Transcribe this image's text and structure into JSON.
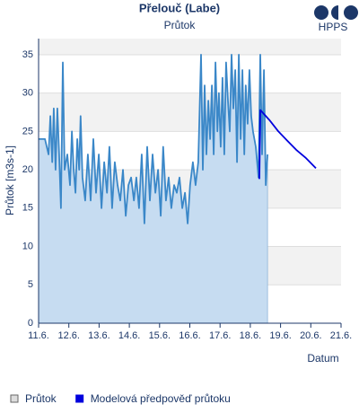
{
  "logo": "HPPS",
  "chart_data": {
    "type": "line",
    "title": "Přelouč (Labe)",
    "subtitle": "Průtok",
    "y_label": "Průtok [m3s-1]",
    "x_label": "Datum",
    "xlim": [
      11,
      21
    ],
    "ylim": [
      0,
      37.1
    ],
    "xticks": [
      {
        "value": 11,
        "label": "11.6."
      },
      {
        "value": 12,
        "label": "12.6."
      },
      {
        "value": 13,
        "label": "13.6."
      },
      {
        "value": 14,
        "label": "14.6."
      },
      {
        "value": 15,
        "label": "15.6."
      },
      {
        "value": 16,
        "label": "16.6."
      },
      {
        "value": 17,
        "label": "17.6."
      },
      {
        "value": 18,
        "label": "18.6."
      },
      {
        "value": 19,
        "label": "19.6."
      },
      {
        "value": 20,
        "label": "20.6."
      },
      {
        "value": 21,
        "label": "21.6."
      }
    ],
    "yticks": [
      0,
      5,
      10,
      15,
      20,
      25,
      30,
      35
    ],
    "grid": true,
    "series": [
      {
        "name": "Průtok",
        "color": "#3a87c8",
        "area_color": "#c6dcf1",
        "x": [
          11.0,
          11.21,
          11.33,
          11.39,
          11.45,
          11.5,
          11.56,
          11.62,
          11.68,
          11.74,
          11.8,
          11.86,
          11.95,
          12.04,
          12.1,
          12.16,
          12.22,
          12.28,
          12.34,
          12.39,
          12.45,
          12.54,
          12.63,
          12.72,
          12.81,
          12.9,
          12.99,
          13.08,
          13.17,
          13.26,
          13.34,
          13.43,
          13.52,
          13.61,
          13.7,
          13.79,
          13.88,
          13.97,
          14.06,
          14.15,
          14.23,
          14.32,
          14.41,
          14.5,
          14.59,
          14.68,
          14.77,
          14.86,
          14.95,
          15.04,
          15.12,
          15.21,
          15.3,
          15.39,
          15.48,
          15.57,
          15.66,
          15.75,
          15.84,
          15.93,
          16.01,
          16.1,
          16.19,
          16.28,
          16.37,
          16.43,
          16.49,
          16.55,
          16.61,
          16.67,
          16.73,
          16.79,
          16.85,
          16.91,
          16.96,
          17.02,
          17.08,
          17.14,
          17.2,
          17.26,
          17.32,
          17.38,
          17.44,
          17.5,
          17.56,
          17.62,
          17.68,
          17.74,
          17.8,
          17.85,
          17.91,
          17.97,
          18.03,
          18.09,
          18.18,
          18.27,
          18.33,
          18.39,
          18.45,
          18.51,
          18.57
        ],
        "values": [
          24,
          24,
          22,
          27,
          21,
          28,
          20,
          28,
          22,
          15,
          34,
          20,
          22,
          18,
          25,
          20,
          17,
          24,
          20,
          27,
          19,
          16,
          22,
          16,
          24,
          17,
          22,
          15,
          21,
          17,
          23,
          15,
          21,
          18,
          16,
          20,
          14,
          18,
          19,
          16,
          19,
          15,
          22,
          13,
          23,
          16,
          22,
          17,
          20,
          14,
          23,
          16,
          19,
          15,
          18,
          17,
          19,
          15,
          17,
          13,
          18,
          21,
          18,
          21,
          35,
          20,
          31,
          22,
          29,
          24,
          31,
          22,
          34,
          25,
          30,
          23,
          32,
          22,
          34,
          29,
          25,
          35,
          28,
          33,
          21,
          35,
          24,
          33,
          22,
          31,
          26,
          33,
          27,
          25,
          23,
          19,
          35,
          22,
          33,
          18,
          22
        ]
      },
      {
        "name": "Modelová předpověď průtoku",
        "color": "#0000dd",
        "x": [
          18.3,
          18.33,
          18.63,
          18.93,
          19.22,
          19.52,
          19.82,
          20.17
        ],
        "values": [
          18.8,
          27.8,
          26.5,
          25,
          23.8,
          22.6,
          21.6,
          20.2
        ]
      }
    ]
  }
}
